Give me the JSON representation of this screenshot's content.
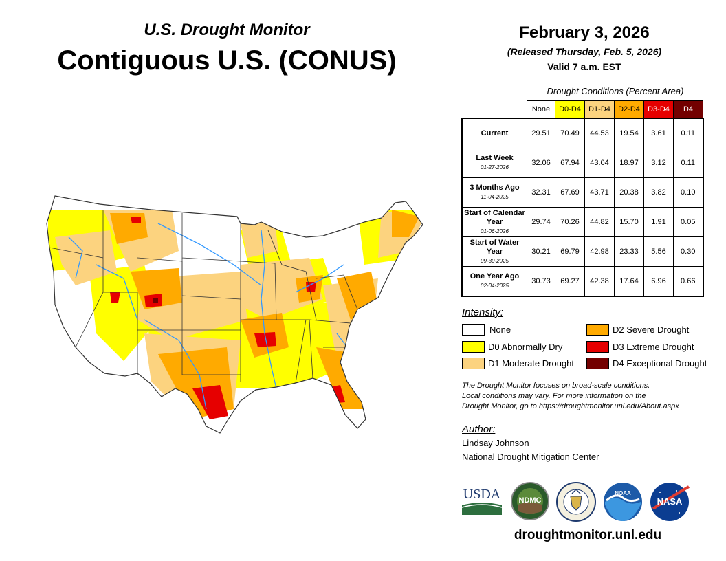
{
  "header": {
    "subtitle": "U.S. Drought Monitor",
    "title": "Contiguous U.S. (CONUS)",
    "date": "February 3, 2026",
    "released": "(Released Thursday, Feb. 5, 2026)",
    "valid": "Valid 7 a.m. EST"
  },
  "table": {
    "caption": "Drought Conditions (Percent Area)",
    "columns": [
      "None",
      "D0-D4",
      "D1-D4",
      "D2-D4",
      "D3-D4",
      "D4"
    ],
    "rows": [
      {
        "label": "Current",
        "date": "",
        "values": [
          "29.51",
          "70.49",
          "44.53",
          "19.54",
          "3.61",
          "0.11"
        ]
      },
      {
        "label": "Last Week",
        "date": "01-27-2026",
        "values": [
          "32.06",
          "67.94",
          "43.04",
          "18.97",
          "3.12",
          "0.11"
        ]
      },
      {
        "label": "3 Months Ago",
        "date": "11-04-2025",
        "values": [
          "32.31",
          "67.69",
          "43.71",
          "20.38",
          "3.82",
          "0.10"
        ]
      },
      {
        "label": "Start of Calendar Year",
        "date": "01-06-2026",
        "values": [
          "29.74",
          "70.26",
          "44.82",
          "15.70",
          "1.91",
          "0.05"
        ]
      },
      {
        "label": "Start of Water Year",
        "date": "09-30-2025",
        "values": [
          "30.21",
          "69.79",
          "42.98",
          "23.33",
          "5.56",
          "0.30"
        ]
      },
      {
        "label": "One Year Ago",
        "date": "02-04-2025",
        "values": [
          "30.73",
          "69.27",
          "42.38",
          "17.64",
          "6.96",
          "0.66"
        ]
      }
    ]
  },
  "legend": {
    "title": "Intensity:",
    "items": [
      {
        "label": "None",
        "color": "#ffffff"
      },
      {
        "label": "D0 Abnormally Dry",
        "color": "#ffff00"
      },
      {
        "label": "D1 Moderate Drought",
        "color": "#fcd37f"
      },
      {
        "label": "D2 Severe Drought",
        "color": "#ffaa00"
      },
      {
        "label": "D3 Extreme Drought",
        "color": "#e60000"
      },
      {
        "label": "D4 Exceptional Drought",
        "color": "#730000"
      }
    ]
  },
  "note": {
    "line1": "The Drought Monitor focuses on broad-scale conditions.",
    "line2": "Local conditions may vary. For more information on the",
    "line3": "Drought Monitor, go to https://droughtmonitor.unl.edu/About.aspx"
  },
  "author": {
    "title": "Author:",
    "name": "Lindsay Johnson",
    "org": "National Drought Mitigation Center"
  },
  "logos": {
    "usda": "USDA",
    "ndmc": "NDMC",
    "noaa": "NOAA",
    "nasa": "NASA"
  },
  "site": "droughtmonitor.unl.edu"
}
